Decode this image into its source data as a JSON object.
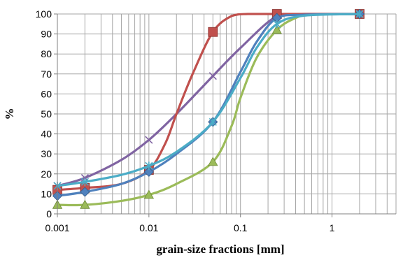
{
  "chart_data": {
    "type": "line",
    "title": "",
    "xlabel": "grain-size fractions [mm]",
    "ylabel": "%",
    "x_scale": "log",
    "xlim": [
      0.001,
      5
    ],
    "ylim": [
      0,
      100
    ],
    "y_ticks": [
      0,
      10,
      20,
      30,
      40,
      50,
      60,
      70,
      80,
      90,
      100
    ],
    "x_ticks": [
      0.001,
      0.01,
      0.1,
      1
    ],
    "x_tick_labels": [
      "0.001",
      "0.01",
      "0.1",
      "1"
    ],
    "grid": true,
    "legend": "none",
    "series": [
      {
        "color": "#4f81bd",
        "marker": "diamond",
        "points": [
          [
            0.001,
            9
          ],
          [
            0.002,
            11
          ],
          [
            0.01,
            21
          ],
          [
            0.05,
            46
          ],
          [
            0.25,
            98
          ],
          [
            2,
            100
          ]
        ],
        "curve": [
          [
            0.001,
            9
          ],
          [
            0.002,
            11
          ],
          [
            0.005,
            15
          ],
          [
            0.01,
            21
          ],
          [
            0.02,
            30
          ],
          [
            0.05,
            46
          ],
          [
            0.1,
            71
          ],
          [
            0.15,
            86
          ],
          [
            0.25,
            98
          ],
          [
            0.5,
            99.6
          ],
          [
            2,
            100
          ]
        ]
      },
      {
        "color": "#c0504d",
        "marker": "square",
        "points": [
          [
            0.001,
            12
          ],
          [
            0.002,
            13
          ],
          [
            0.01,
            22
          ],
          [
            0.05,
            91
          ],
          [
            0.25,
            100
          ],
          [
            2,
            100
          ]
        ],
        "curve": [
          [
            0.001,
            12
          ],
          [
            0.002,
            13
          ],
          [
            0.005,
            15
          ],
          [
            0.01,
            22
          ],
          [
            0.015,
            35
          ],
          [
            0.02,
            50
          ],
          [
            0.03,
            70
          ],
          [
            0.05,
            91
          ],
          [
            0.08,
            99
          ],
          [
            0.12,
            100
          ],
          [
            0.25,
            100
          ],
          [
            2,
            100
          ]
        ]
      },
      {
        "color": "#9bbb59",
        "marker": "triangle",
        "points": [
          [
            0.001,
            4.5
          ],
          [
            0.002,
            4.5
          ],
          [
            0.01,
            9.5
          ],
          [
            0.05,
            26
          ],
          [
            0.25,
            92
          ],
          [
            2,
            100
          ]
        ],
        "curve": [
          [
            0.001,
            4.5
          ],
          [
            0.002,
            4.5
          ],
          [
            0.005,
            6.5
          ],
          [
            0.01,
            9.5
          ],
          [
            0.02,
            15
          ],
          [
            0.05,
            26
          ],
          [
            0.08,
            44
          ],
          [
            0.1,
            58
          ],
          [
            0.15,
            78
          ],
          [
            0.25,
            92
          ],
          [
            0.4,
            98
          ],
          [
            0.6,
            99.8
          ],
          [
            2,
            100
          ]
        ]
      },
      {
        "color": "#8064a2",
        "marker": "x",
        "points": [
          [
            0.001,
            14
          ],
          [
            0.002,
            18
          ],
          [
            0.01,
            37
          ],
          [
            0.05,
            69
          ],
          [
            0.25,
            99
          ],
          [
            2,
            100
          ]
        ],
        "curve": [
          [
            0.001,
            14
          ],
          [
            0.002,
            18
          ],
          [
            0.005,
            27
          ],
          [
            0.01,
            37
          ],
          [
            0.02,
            50
          ],
          [
            0.05,
            69
          ],
          [
            0.1,
            83
          ],
          [
            0.25,
            99
          ],
          [
            0.5,
            100
          ],
          [
            2,
            100
          ]
        ]
      },
      {
        "color": "#4bacc6",
        "marker": "star",
        "points": [
          [
            0.001,
            14
          ],
          [
            0.002,
            16
          ],
          [
            0.01,
            24
          ],
          [
            0.05,
            46
          ],
          [
            0.25,
            95
          ],
          [
            2,
            100
          ]
        ],
        "curve": [
          [
            0.001,
            14
          ],
          [
            0.002,
            16
          ],
          [
            0.005,
            19.5
          ],
          [
            0.01,
            24
          ],
          [
            0.02,
            31
          ],
          [
            0.05,
            46
          ],
          [
            0.1,
            68
          ],
          [
            0.15,
            83
          ],
          [
            0.25,
            95
          ],
          [
            0.5,
            99.2
          ],
          [
            2,
            100
          ]
        ]
      }
    ]
  }
}
